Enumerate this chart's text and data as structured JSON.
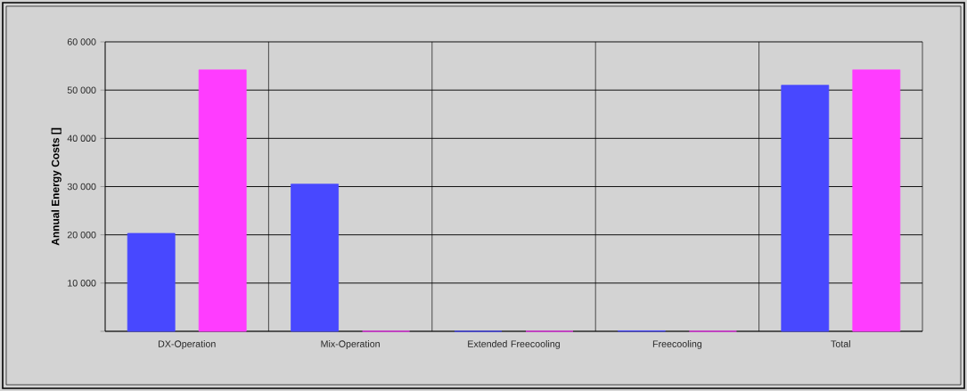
{
  "chart_data": {
    "type": "bar",
    "ylabel": "Annual Energy Costs []",
    "categories": [
      "DX-Operation",
      "Mix-Operation",
      "Extended Freecooling",
      "Freecooling",
      "Total"
    ],
    "series": [
      {
        "color": "#4848ff",
        "values": [
          20300,
          30500,
          0,
          100,
          51000
        ]
      },
      {
        "color": "#ff3cff",
        "values": [
          54200,
          0,
          0,
          0,
          54200
        ]
      }
    ],
    "ylim": [
      0,
      60000
    ],
    "yticks": [
      {
        "value": 0,
        "label": null
      },
      {
        "value": 10000,
        "label": "10 000"
      },
      {
        "value": 20000,
        "label": "20 000"
      },
      {
        "value": 30000,
        "label": "30 000"
      },
      {
        "value": 40000,
        "label": "40 000"
      },
      {
        "value": 50000,
        "label": "50 000"
      },
      {
        "value": 60000,
        "label": "60 000"
      }
    ],
    "grid": true
  }
}
